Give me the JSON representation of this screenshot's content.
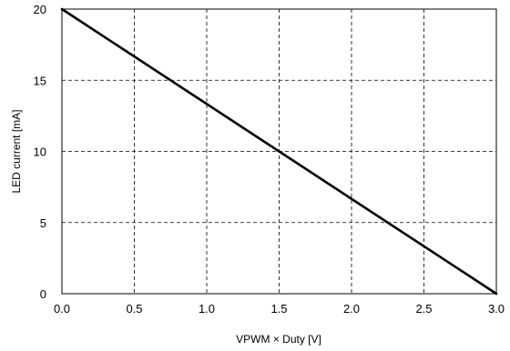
{
  "chart_data": {
    "type": "line",
    "xlabel": "VPWM × Duty [V]",
    "ylabel": "LED current [mA]",
    "xlim": [
      0,
      3.0
    ],
    "ylim": [
      0,
      20
    ],
    "x_ticks": [
      "0.0",
      "0.5",
      "1.0",
      "1.5",
      "2.0",
      "2.5",
      "3.0"
    ],
    "y_ticks": [
      "0",
      "5",
      "10",
      "15",
      "20"
    ],
    "grid": true,
    "series": [
      {
        "x": [
          0,
          3.0
        ],
        "y": [
          20,
          0
        ],
        "color": "#000000"
      }
    ]
  }
}
